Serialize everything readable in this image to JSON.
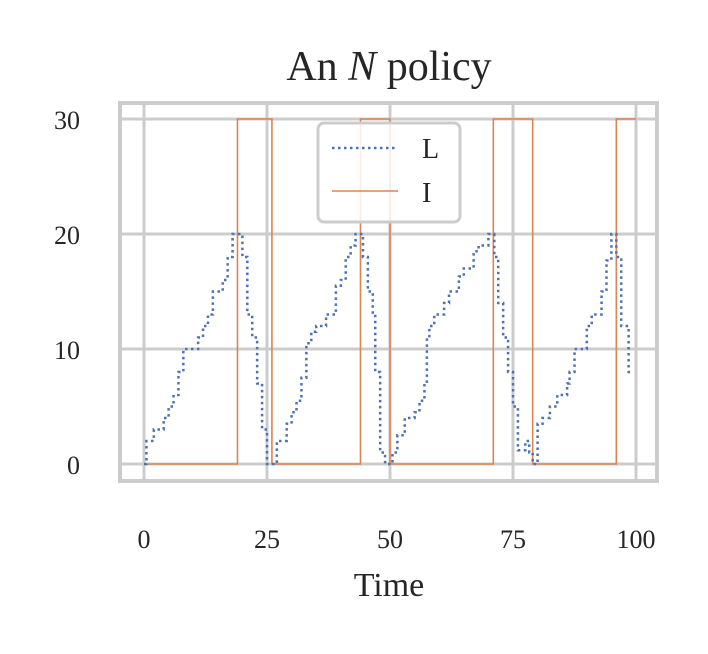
{
  "chart_data": {
    "type": "line",
    "title_prefix": "An ",
    "title_italic": "N",
    "title_suffix": " policy",
    "xlabel": "Time",
    "ylabel": "",
    "xlim": [
      -5,
      104
    ],
    "ylim": [
      -1.5,
      31.5
    ],
    "xticks": [
      0,
      25,
      50,
      75,
      100
    ],
    "xtick_labels": [
      "0",
      "25",
      "50",
      "75",
      "100"
    ],
    "yticks": [
      0,
      10,
      20,
      30
    ],
    "ytick_labels": [
      "0",
      "10",
      "20",
      "30"
    ],
    "grid": true,
    "legend_position": "top-center",
    "series": [
      {
        "name": "L",
        "style": "dotted",
        "color": "#4c72b0",
        "drawstyle": "steps-post",
        "points": [
          [
            0,
            0
          ],
          [
            0.5,
            2
          ],
          [
            2,
            3
          ],
          [
            4,
            4
          ],
          [
            5,
            5
          ],
          [
            6,
            6
          ],
          [
            7,
            8
          ],
          [
            8,
            10
          ],
          [
            10,
            10
          ],
          [
            11,
            11
          ],
          [
            12,
            12
          ],
          [
            13,
            13
          ],
          [
            14,
            15
          ],
          [
            16,
            16
          ],
          [
            17,
            18
          ],
          [
            18,
            20
          ],
          [
            20,
            18
          ],
          [
            21,
            13
          ],
          [
            22,
            11
          ],
          [
            23,
            7
          ],
          [
            24,
            3
          ],
          [
            25,
            0
          ],
          [
            27,
            2
          ],
          [
            29,
            3.5
          ],
          [
            30,
            4.5
          ],
          [
            31,
            5.5
          ],
          [
            32,
            7.5
          ],
          [
            33,
            10.5
          ],
          [
            34,
            11.5
          ],
          [
            35,
            12
          ],
          [
            37,
            13
          ],
          [
            39,
            15.5
          ],
          [
            40,
            16
          ],
          [
            41,
            18
          ],
          [
            42,
            19
          ],
          [
            43,
            20
          ],
          [
            44.5,
            18
          ],
          [
            45.5,
            15
          ],
          [
            46.5,
            13
          ],
          [
            47,
            8
          ],
          [
            48,
            1
          ],
          [
            49,
            0
          ],
          [
            50.5,
            1
          ],
          [
            51.5,
            2.5
          ],
          [
            53,
            4
          ],
          [
            55,
            4.5
          ],
          [
            56,
            5.5
          ],
          [
            57,
            7
          ],
          [
            57.5,
            11
          ],
          [
            58,
            12
          ],
          [
            59,
            13
          ],
          [
            61,
            14
          ],
          [
            62,
            15
          ],
          [
            64,
            16.3
          ],
          [
            65,
            17
          ],
          [
            67,
            18.5
          ],
          [
            68,
            19
          ],
          [
            70,
            20
          ],
          [
            71.2,
            18
          ],
          [
            72,
            14
          ],
          [
            73,
            11
          ],
          [
            74,
            8
          ],
          [
            75,
            5
          ],
          [
            76,
            1.2
          ],
          [
            77.5,
            2
          ],
          [
            78.3,
            1
          ],
          [
            79,
            0
          ],
          [
            80,
            3.5
          ],
          [
            81,
            4
          ],
          [
            82.5,
            5
          ],
          [
            84,
            6
          ],
          [
            86,
            7
          ],
          [
            86.5,
            8
          ],
          [
            87.5,
            10
          ],
          [
            90,
            12
          ],
          [
            91,
            13
          ],
          [
            93,
            15
          ],
          [
            94,
            17.7
          ],
          [
            95,
            20
          ],
          [
            96,
            18
          ],
          [
            97,
            12
          ],
          [
            98.5,
            8
          ],
          [
            99.5,
            8
          ]
        ]
      },
      {
        "name": "I",
        "style": "solid",
        "color": "#dd8452",
        "drawstyle": "steps-post",
        "points": [
          [
            0,
            0
          ],
          [
            19,
            30
          ],
          [
            26,
            0
          ],
          [
            44,
            30
          ],
          [
            50,
            0
          ],
          [
            71,
            30
          ],
          [
            79,
            0
          ],
          [
            96,
            30
          ],
          [
            100,
            30
          ]
        ]
      }
    ]
  }
}
